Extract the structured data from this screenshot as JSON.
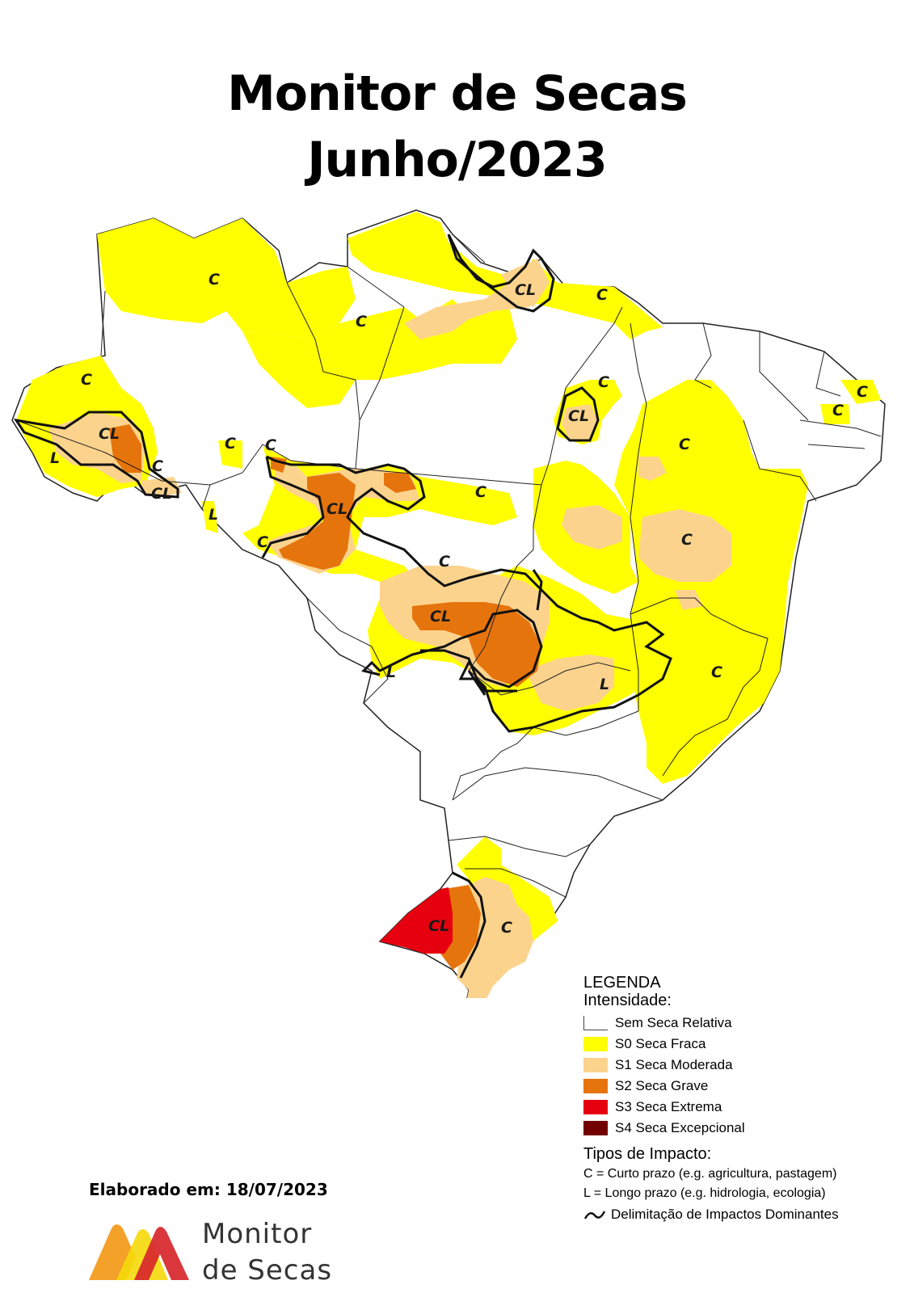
{
  "title": {
    "line1": "Monitor de Secas",
    "line2": "Junho/2023"
  },
  "map_labels": [
    "C",
    "C",
    "C",
    "C",
    "CL",
    "C",
    "C",
    "CL",
    "C",
    "C",
    "CL",
    "L",
    "C",
    "CL",
    "C",
    "C",
    "C",
    "L",
    "CL",
    "C",
    "C",
    "CL",
    "L",
    "C",
    "L",
    "C",
    "CL",
    "C"
  ],
  "legend": {
    "title": "LEGENDA",
    "subtitle": "Intensidade:",
    "items": [
      {
        "label": "Sem Seca Relativa",
        "color": "#ffffff"
      },
      {
        "label": "S0 Seca Fraca",
        "color": "#ffff00"
      },
      {
        "label": "S1 Seca Moderada",
        "color": "#fcd38d"
      },
      {
        "label": "S2 Seca Grave",
        "color": "#e6740d"
      },
      {
        "label": "S3 Seca Extrema",
        "color": "#e6000f"
      },
      {
        "label": "S4 Seca Excepcional",
        "color": "#730000"
      }
    ],
    "impact_title": "Tipos de Impacto:",
    "impact_short": "C = Curto prazo (e.g. agricultura, pastagem)",
    "impact_long": "L = Longo prazo (e.g. hidrologia, ecologia)",
    "delimitation": "Delimitação de Impactos Dominantes"
  },
  "made_on": "Elaborado em: 18/07/2023",
  "brand": {
    "line1": "Monitor",
    "line2": "de Secas"
  },
  "colors": {
    "s0": "#ffff00",
    "s1": "#fcd38d",
    "s2": "#e6740d",
    "s3": "#e6000f",
    "s4": "#730000"
  }
}
